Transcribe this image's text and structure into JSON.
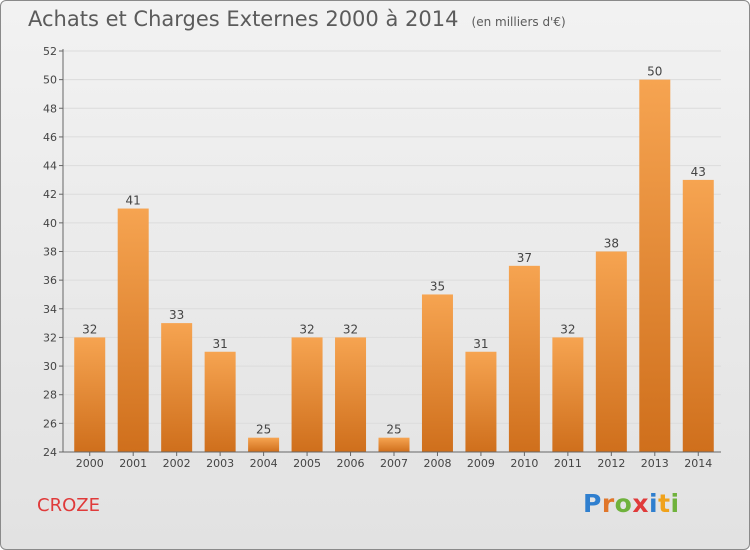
{
  "title": "Achats et Charges Externes 2000 à 2014",
  "subtitle": "(en milliers d'€)",
  "commune": "CROZE",
  "logo": {
    "text": "Proxiti",
    "letter_colors": [
      "#2f7fcf",
      "#e0762a",
      "#6fb23c",
      "#e03a3a",
      "#2f7fcf",
      "#f0a21b",
      "#6fb23c"
    ]
  },
  "colors": {
    "bar_top": "#f6a451",
    "bar_bottom": "#cf6f1c",
    "commune_text": "#e03a3a",
    "axis": "#666666",
    "grid": "#dcdcdc"
  },
  "chart_data": {
    "type": "bar",
    "categories": [
      "2000",
      "2001",
      "2002",
      "2003",
      "2004",
      "2005",
      "2006",
      "2007",
      "2008",
      "2009",
      "2010",
      "2011",
      "2012",
      "2013",
      "2014"
    ],
    "values": [
      32,
      41,
      33,
      31,
      25,
      32,
      32,
      25,
      35,
      31,
      37,
      32,
      38,
      50,
      43
    ],
    "title": "Achats et Charges Externes 2000 à 2014",
    "xlabel": "",
    "ylabel": "",
    "ylim": [
      24,
      52
    ],
    "yticks": [
      24,
      26,
      28,
      30,
      32,
      34,
      36,
      38,
      40,
      42,
      44,
      46,
      48,
      50,
      52
    ],
    "grid": true,
    "data_labels": true
  }
}
